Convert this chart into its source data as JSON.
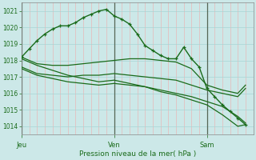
{
  "xlabel": "Pression niveau de la mer( hPa )",
  "ylim": [
    1013.5,
    1021.5
  ],
  "yticks": [
    1014,
    1015,
    1016,
    1017,
    1018,
    1019,
    1020,
    1021
  ],
  "bg_color": "#cce8e8",
  "line_color": "#1a6b1a",
  "day_labels": [
    "Jeu",
    "Ven",
    "Sam"
  ],
  "day_positions": [
    0,
    36,
    72
  ],
  "xlim": [
    0,
    90
  ],
  "pink_grid_color": "#e8b8b8",
  "teal_grid_color": "#a8d4d4",
  "vline_color": "#556655",
  "series": [
    {
      "x": [
        0,
        3,
        6,
        9,
        12,
        15,
        18,
        21,
        24,
        27,
        30,
        33,
        36,
        39,
        42,
        45,
        48,
        51,
        54,
        57,
        60,
        63,
        66,
        69,
        72,
        75,
        78,
        81,
        84,
        87
      ],
      "y": [
        1018.2,
        1018.7,
        1019.2,
        1019.6,
        1019.9,
        1020.1,
        1020.1,
        1020.3,
        1020.6,
        1020.8,
        1021.0,
        1021.1,
        1020.7,
        1020.5,
        1020.2,
        1019.6,
        1018.9,
        1018.6,
        1018.3,
        1018.1,
        1018.1,
        1018.8,
        1018.1,
        1017.6,
        1016.3,
        1015.8,
        1015.3,
        1014.9,
        1014.5,
        1014.1
      ],
      "marker": "+",
      "lw": 1.0
    },
    {
      "x": [
        0,
        6,
        12,
        18,
        24,
        30,
        36,
        42,
        48,
        54,
        60,
        66,
        72,
        78,
        84,
        87
      ],
      "y": [
        1018.2,
        1017.8,
        1017.7,
        1017.7,
        1017.8,
        1017.9,
        1018.0,
        1018.1,
        1018.1,
        1018.0,
        1017.9,
        1017.5,
        1016.5,
        1016.2,
        1016.0,
        1016.5
      ],
      "marker": null,
      "lw": 0.9
    },
    {
      "x": [
        0,
        6,
        12,
        18,
        24,
        30,
        36,
        42,
        48,
        54,
        60,
        66,
        72,
        78,
        84,
        87
      ],
      "y": [
        1017.6,
        1017.2,
        1017.1,
        1017.0,
        1017.1,
        1017.1,
        1017.2,
        1017.1,
        1017.0,
        1016.9,
        1016.8,
        1016.5,
        1016.2,
        1016.0,
        1015.8,
        1016.3
      ],
      "marker": null,
      "lw": 0.9
    },
    {
      "x": [
        0,
        6,
        12,
        18,
        24,
        30,
        36,
        42,
        48,
        54,
        60,
        66,
        72,
        78,
        84,
        87
      ],
      "y": [
        1017.5,
        1017.1,
        1016.9,
        1016.7,
        1016.6,
        1016.5,
        1016.6,
        1016.5,
        1016.4,
        1016.2,
        1016.0,
        1015.8,
        1015.5,
        1015.2,
        1014.6,
        1014.2
      ],
      "marker": null,
      "lw": 0.9
    },
    {
      "x": [
        0,
        6,
        12,
        18,
        24,
        30,
        36,
        42,
        48,
        54,
        60,
        66,
        72,
        78,
        84,
        87
      ],
      "y": [
        1018.1,
        1017.7,
        1017.4,
        1017.1,
        1016.9,
        1016.7,
        1016.8,
        1016.6,
        1016.4,
        1016.1,
        1015.9,
        1015.6,
        1015.3,
        1014.7,
        1014.0,
        1014.1
      ],
      "marker": null,
      "lw": 0.9
    }
  ]
}
